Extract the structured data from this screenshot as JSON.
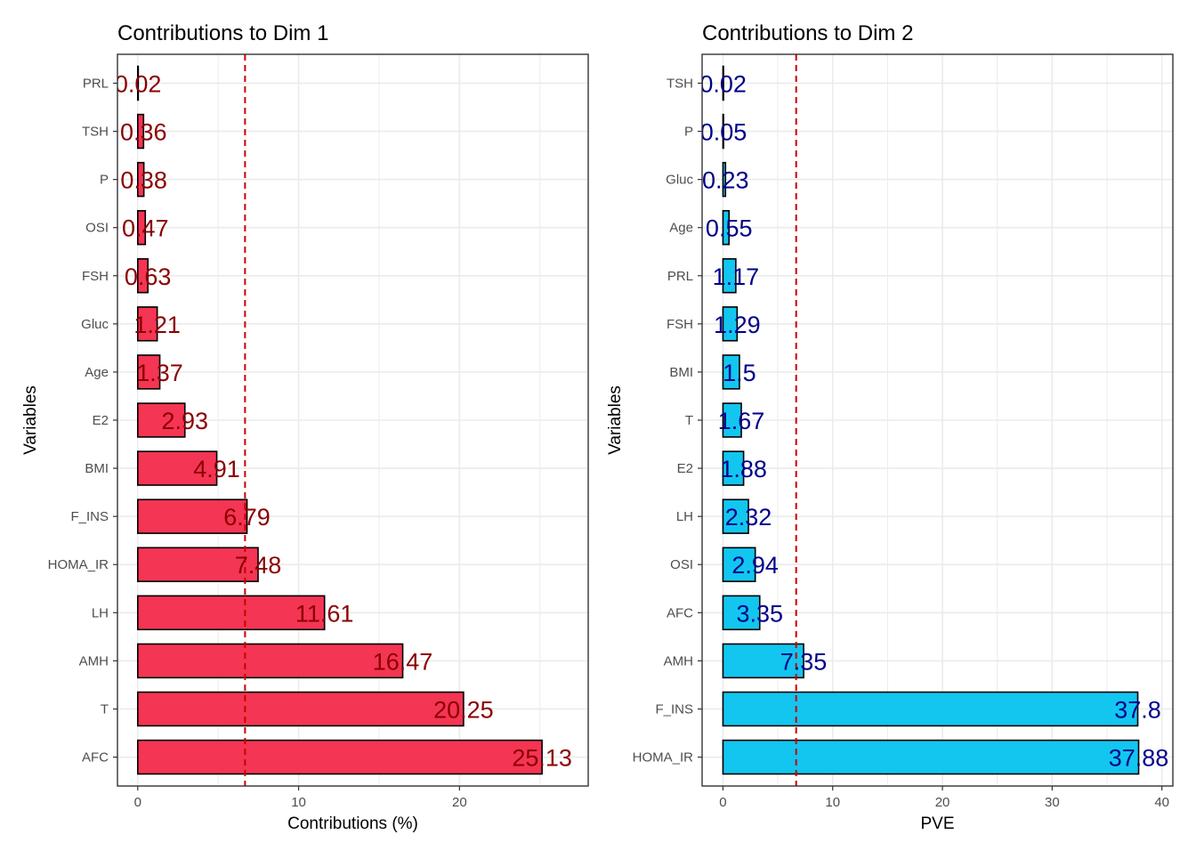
{
  "colors": {
    "bar_left": "#F43553",
    "bar_right": "#12C6EF",
    "label_left": "#8B0000",
    "label_right": "#00008B",
    "ref_line": "#CC0000",
    "grid": "#EBEBEB"
  },
  "chart_data": [
    {
      "type": "bar",
      "orientation": "horizontal",
      "title": "Contributions to Dim 1",
      "xlabel": "Contributions (%)",
      "ylabel": "Variables",
      "xlim": [
        -1.26,
        28.0
      ],
      "xticks": [
        0,
        10,
        20
      ],
      "reference_line": 6.67,
      "categories": [
        "PRL",
        "TSH",
        "P",
        "OSI",
        "FSH",
        "Gluc",
        "Age",
        "E2",
        "BMI",
        "F_INS",
        "HOMA_IR",
        "LH",
        "AMH",
        "T",
        "AFC"
      ],
      "values": [
        0.02,
        0.36,
        0.38,
        0.47,
        0.63,
        1.21,
        1.37,
        2.93,
        4.91,
        6.79,
        7.48,
        11.61,
        16.47,
        20.25,
        25.13
      ],
      "labels": [
        "0.02",
        "0.36",
        "0.38",
        "0.47",
        "0.63",
        "1.21",
        "1.37",
        "2.93",
        "4.91",
        "6.79",
        "7.48",
        "11.61",
        "16.47",
        "20.25",
        "25.13"
      ]
    },
    {
      "type": "bar",
      "orientation": "horizontal",
      "title": "Contributions to Dim 2",
      "xlabel": "PVE",
      "ylabel": "Variables",
      "xlim": [
        -1.9,
        41.0
      ],
      "xticks": [
        0,
        10,
        20,
        30,
        40
      ],
      "reference_line": 6.67,
      "categories": [
        "TSH",
        "P",
        "Gluc",
        "Age",
        "PRL",
        "FSH",
        "BMI",
        "T",
        "E2",
        "LH",
        "OSI",
        "AFC",
        "AMH",
        "F_INS",
        "HOMA_IR"
      ],
      "values": [
        0.02,
        0.05,
        0.23,
        0.55,
        1.17,
        1.29,
        1.5,
        1.67,
        1.88,
        2.32,
        2.94,
        3.35,
        7.35,
        37.8,
        37.88
      ],
      "labels": [
        "0.02",
        "0.05",
        "0.23",
        "0.55",
        "1.17",
        "1.29",
        "1.5",
        "1.67",
        "1.88",
        "2.32",
        "2.94",
        "3.35",
        "7.35",
        "37.8",
        "37.88"
      ]
    }
  ]
}
